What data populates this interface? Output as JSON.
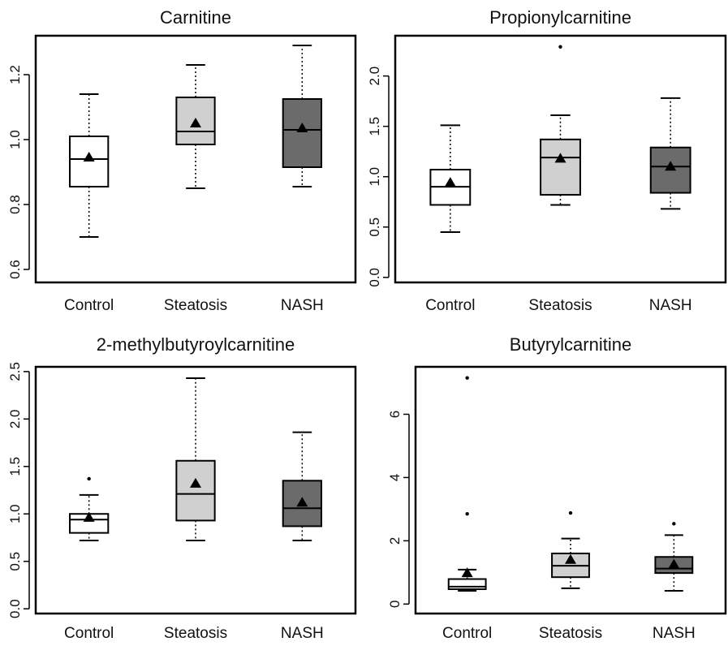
{
  "colors": {
    "control": "#ffffff",
    "steatosis": "#d0d0d0",
    "nash": "#6b6b6b"
  },
  "chart_data": [
    {
      "type": "box",
      "title": "Carnitine",
      "categories": [
        "Control",
        "Steatosis",
        "NASH"
      ],
      "ylim": [
        0.56,
        1.32
      ],
      "yticks": [
        0.6,
        0.8,
        1.0,
        1.2
      ],
      "ytick_labels": [
        "0.6",
        "0.8",
        "1.0",
        "1.2"
      ],
      "boxes": [
        {
          "group": "Control",
          "min": 0.7,
          "q1": 0.855,
          "median": 0.94,
          "q3": 1.01,
          "max": 1.14,
          "mean": 0.945,
          "outliers": []
        },
        {
          "group": "Steatosis",
          "min": 0.85,
          "q1": 0.985,
          "median": 1.025,
          "q3": 1.13,
          "max": 1.23,
          "mean": 1.05,
          "outliers": []
        },
        {
          "group": "NASH",
          "min": 0.855,
          "q1": 0.915,
          "median": 1.03,
          "q3": 1.125,
          "max": 1.29,
          "mean": 1.035,
          "outliers": []
        }
      ]
    },
    {
      "type": "box",
      "title": "Propionylcarnitine",
      "categories": [
        "Control",
        "Steatosis",
        "NASH"
      ],
      "ylim": [
        -0.05,
        2.4
      ],
      "yticks": [
        0.0,
        0.5,
        1.0,
        1.5,
        2.0
      ],
      "ytick_labels": [
        "0.0",
        "0.5",
        "1.0",
        "1.5",
        "2.0"
      ],
      "boxes": [
        {
          "group": "Control",
          "min": 0.45,
          "q1": 0.72,
          "median": 0.9,
          "q3": 1.07,
          "max": 1.51,
          "mean": 0.94,
          "outliers": []
        },
        {
          "group": "Steatosis",
          "min": 0.72,
          "q1": 0.82,
          "median": 1.19,
          "q3": 1.37,
          "max": 1.61,
          "mean": 1.18,
          "outliers": [
            2.29
          ]
        },
        {
          "group": "NASH",
          "min": 0.68,
          "q1": 0.84,
          "median": 1.1,
          "q3": 1.29,
          "max": 1.78,
          "mean": 1.1,
          "outliers": []
        }
      ]
    },
    {
      "type": "box",
      "title": "2-methylbutyroylcarnitine",
      "categories": [
        "Control",
        "Steatosis",
        "NASH"
      ],
      "ylim": [
        -0.05,
        2.55
      ],
      "yticks": [
        0.0,
        0.5,
        1.0,
        1.5,
        2.0,
        2.5
      ],
      "ytick_labels": [
        "0.0",
        "0.5",
        "1.0",
        "1.5",
        "2.0",
        "2.5"
      ],
      "boxes": [
        {
          "group": "Control",
          "min": 0.72,
          "q1": 0.8,
          "median": 0.94,
          "q3": 1.0,
          "max": 1.2,
          "mean": 0.96,
          "outliers": [
            1.37
          ]
        },
        {
          "group": "Steatosis",
          "min": 0.72,
          "q1": 0.93,
          "median": 1.21,
          "q3": 1.56,
          "max": 2.43,
          "mean": 1.32,
          "outliers": []
        },
        {
          "group": "NASH",
          "min": 0.72,
          "q1": 0.87,
          "median": 1.06,
          "q3": 1.35,
          "max": 1.86,
          "mean": 1.12,
          "outliers": []
        }
      ]
    },
    {
      "type": "box",
      "title": "Butyrylcarnitine",
      "categories": [
        "Control",
        "Steatosis",
        "NASH"
      ],
      "ylim": [
        -0.3,
        7.5
      ],
      "yticks": [
        0,
        2,
        4,
        6
      ],
      "ytick_labels": [
        "0",
        "2",
        "4",
        "6"
      ],
      "boxes": [
        {
          "group": "Control",
          "min": 0.42,
          "q1": 0.47,
          "median": 0.55,
          "q3": 0.79,
          "max": 1.09,
          "mean": 0.98,
          "outliers": [
            2.85,
            7.15
          ]
        },
        {
          "group": "Steatosis",
          "min": 0.5,
          "q1": 0.85,
          "median": 1.21,
          "q3": 1.6,
          "max": 2.07,
          "mean": 1.4,
          "outliers": [
            2.88
          ]
        },
        {
          "group": "NASH",
          "min": 0.42,
          "q1": 0.98,
          "median": 1.12,
          "q3": 1.49,
          "max": 2.18,
          "mean": 1.25,
          "outliers": [
            2.54
          ]
        }
      ]
    }
  ]
}
